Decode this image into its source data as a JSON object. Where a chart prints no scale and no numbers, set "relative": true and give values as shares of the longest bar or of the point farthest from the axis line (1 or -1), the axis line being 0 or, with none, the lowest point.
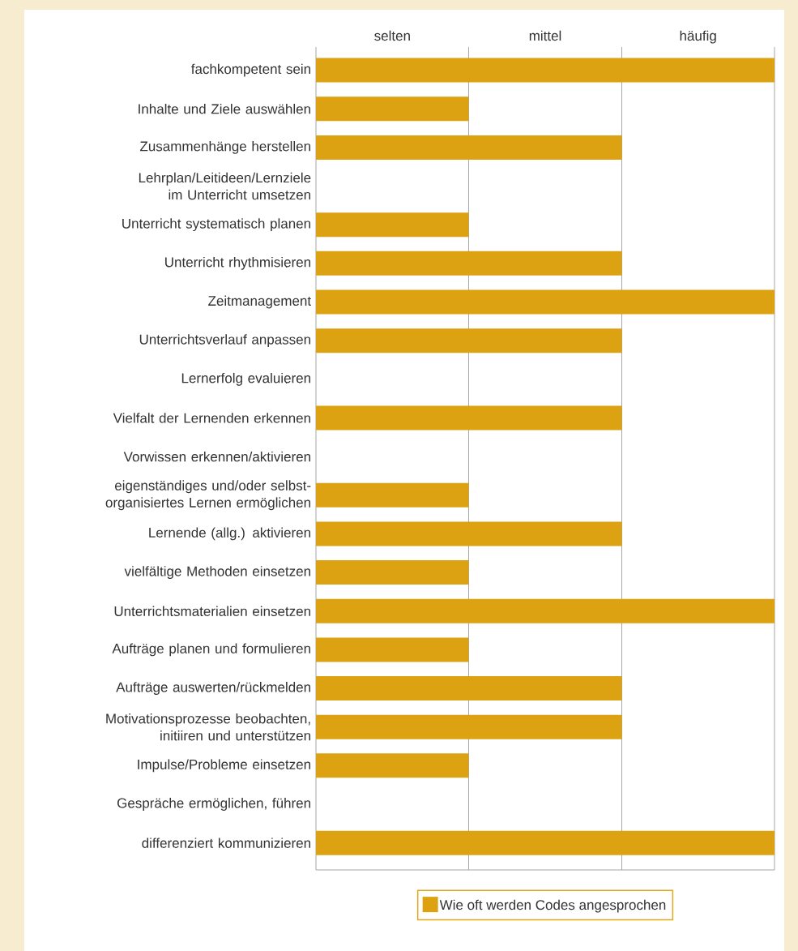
{
  "chart_data": {
    "type": "bar",
    "orientation": "horizontal",
    "relative": true,
    "categories": [
      "fachkompetent sein",
      "Inhalte und Ziele auswählen",
      "Zusammenhänge herstellen",
      "Lehrplan/Leitideen/Lernziele im Unterricht umsetzen",
      "Unterricht systematisch planen",
      "Unterricht rhythmisieren",
      "Zeitmanagement",
      "Unterrichtsverlauf anpassen",
      "Lernerfolg evaluieren",
      "Vielfalt der Lernenden erkennen",
      "Vorwissen erkennen/aktivieren",
      "eigenständiges und/oder selbst-organisiertes Lernen ermöglichen",
      "Lernende (allg.) aktivieren",
      "vielfältige Methoden einsetzen",
      "Unterrichtsmaterialien einsetzen",
      "Aufträge planen und formulieren",
      "Aufträge auswerten/rückmelden",
      "Motivationsprozesse beobachten, initiiren und unterstützen",
      "Impulse/Probleme einsetzen",
      "Gespräche ermöglichen, führen",
      "differenziert kommunizieren"
    ],
    "series": [
      {
        "name": "Wie oft werden Codes angesprochen",
        "color": "#dca211",
        "values": [
          1,
          0.333,
          0.667,
          0,
          0.333,
          0.667,
          1,
          0.667,
          0,
          0.667,
          0,
          0.333,
          0.667,
          0.333,
          1,
          0.333,
          0.667,
          0.667,
          0.333,
          0,
          1
        ]
      }
    ],
    "annotations": [
      "selten",
      "mittel",
      "häufig"
    ],
    "ref_lines": [
      {
        "axis": "x",
        "value": 0.333,
        "color": "#a6a6a6"
      },
      {
        "axis": "x",
        "value": 0.667,
        "color": "#a6a6a6"
      }
    ],
    "legend": "bottom"
  }
}
